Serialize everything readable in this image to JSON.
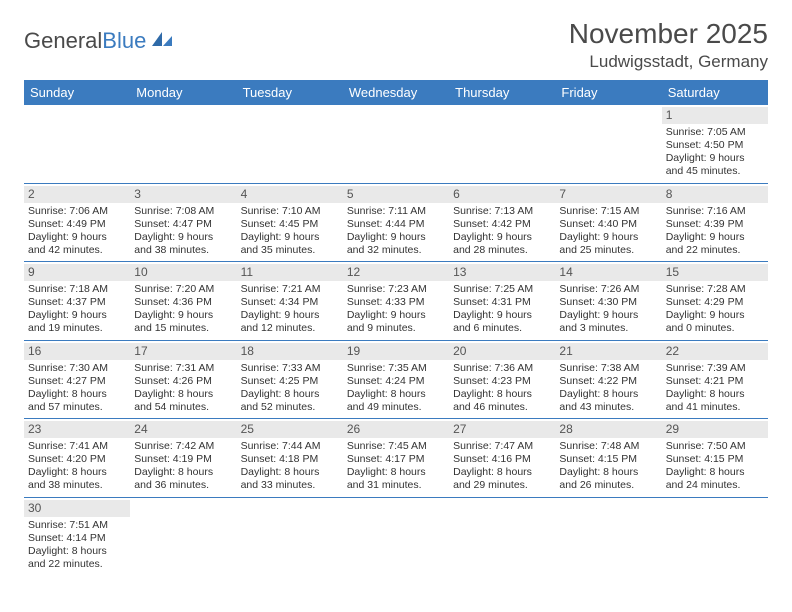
{
  "logo": {
    "text1": "General",
    "text2": "Blue"
  },
  "title": "November 2025",
  "location": "Ludwigsstadt, Germany",
  "colors": {
    "header_bg": "#3b7bbf",
    "header_fg": "#ffffff",
    "daynum_bg": "#e9e9e9",
    "border": "#3b7bbf",
    "text": "#333333"
  },
  "weekdays": [
    "Sunday",
    "Monday",
    "Tuesday",
    "Wednesday",
    "Thursday",
    "Friday",
    "Saturday"
  ],
  "weeks": [
    [
      null,
      null,
      null,
      null,
      null,
      null,
      {
        "n": "1",
        "sr": "7:05 AM",
        "ss": "4:50 PM",
        "dl": "9 hours and 45 minutes."
      }
    ],
    [
      {
        "n": "2",
        "sr": "7:06 AM",
        "ss": "4:49 PM",
        "dl": "9 hours and 42 minutes."
      },
      {
        "n": "3",
        "sr": "7:08 AM",
        "ss": "4:47 PM",
        "dl": "9 hours and 38 minutes."
      },
      {
        "n": "4",
        "sr": "7:10 AM",
        "ss": "4:45 PM",
        "dl": "9 hours and 35 minutes."
      },
      {
        "n": "5",
        "sr": "7:11 AM",
        "ss": "4:44 PM",
        "dl": "9 hours and 32 minutes."
      },
      {
        "n": "6",
        "sr": "7:13 AM",
        "ss": "4:42 PM",
        "dl": "9 hours and 28 minutes."
      },
      {
        "n": "7",
        "sr": "7:15 AM",
        "ss": "4:40 PM",
        "dl": "9 hours and 25 minutes."
      },
      {
        "n": "8",
        "sr": "7:16 AM",
        "ss": "4:39 PM",
        "dl": "9 hours and 22 minutes."
      }
    ],
    [
      {
        "n": "9",
        "sr": "7:18 AM",
        "ss": "4:37 PM",
        "dl": "9 hours and 19 minutes."
      },
      {
        "n": "10",
        "sr": "7:20 AM",
        "ss": "4:36 PM",
        "dl": "9 hours and 15 minutes."
      },
      {
        "n": "11",
        "sr": "7:21 AM",
        "ss": "4:34 PM",
        "dl": "9 hours and 12 minutes."
      },
      {
        "n": "12",
        "sr": "7:23 AM",
        "ss": "4:33 PM",
        "dl": "9 hours and 9 minutes."
      },
      {
        "n": "13",
        "sr": "7:25 AM",
        "ss": "4:31 PM",
        "dl": "9 hours and 6 minutes."
      },
      {
        "n": "14",
        "sr": "7:26 AM",
        "ss": "4:30 PM",
        "dl": "9 hours and 3 minutes."
      },
      {
        "n": "15",
        "sr": "7:28 AM",
        "ss": "4:29 PM",
        "dl": "9 hours and 0 minutes."
      }
    ],
    [
      {
        "n": "16",
        "sr": "7:30 AM",
        "ss": "4:27 PM",
        "dl": "8 hours and 57 minutes."
      },
      {
        "n": "17",
        "sr": "7:31 AM",
        "ss": "4:26 PM",
        "dl": "8 hours and 54 minutes."
      },
      {
        "n": "18",
        "sr": "7:33 AM",
        "ss": "4:25 PM",
        "dl": "8 hours and 52 minutes."
      },
      {
        "n": "19",
        "sr": "7:35 AM",
        "ss": "4:24 PM",
        "dl": "8 hours and 49 minutes."
      },
      {
        "n": "20",
        "sr": "7:36 AM",
        "ss": "4:23 PM",
        "dl": "8 hours and 46 minutes."
      },
      {
        "n": "21",
        "sr": "7:38 AM",
        "ss": "4:22 PM",
        "dl": "8 hours and 43 minutes."
      },
      {
        "n": "22",
        "sr": "7:39 AM",
        "ss": "4:21 PM",
        "dl": "8 hours and 41 minutes."
      }
    ],
    [
      {
        "n": "23",
        "sr": "7:41 AM",
        "ss": "4:20 PM",
        "dl": "8 hours and 38 minutes."
      },
      {
        "n": "24",
        "sr": "7:42 AM",
        "ss": "4:19 PM",
        "dl": "8 hours and 36 minutes."
      },
      {
        "n": "25",
        "sr": "7:44 AM",
        "ss": "4:18 PM",
        "dl": "8 hours and 33 minutes."
      },
      {
        "n": "26",
        "sr": "7:45 AM",
        "ss": "4:17 PM",
        "dl": "8 hours and 31 minutes."
      },
      {
        "n": "27",
        "sr": "7:47 AM",
        "ss": "4:16 PM",
        "dl": "8 hours and 29 minutes."
      },
      {
        "n": "28",
        "sr": "7:48 AM",
        "ss": "4:15 PM",
        "dl": "8 hours and 26 minutes."
      },
      {
        "n": "29",
        "sr": "7:50 AM",
        "ss": "4:15 PM",
        "dl": "8 hours and 24 minutes."
      }
    ],
    [
      {
        "n": "30",
        "sr": "7:51 AM",
        "ss": "4:14 PM",
        "dl": "8 hours and 22 minutes."
      },
      null,
      null,
      null,
      null,
      null,
      null
    ]
  ],
  "labels": {
    "sunrise": "Sunrise: ",
    "sunset": "Sunset: ",
    "daylight": "Daylight: "
  }
}
